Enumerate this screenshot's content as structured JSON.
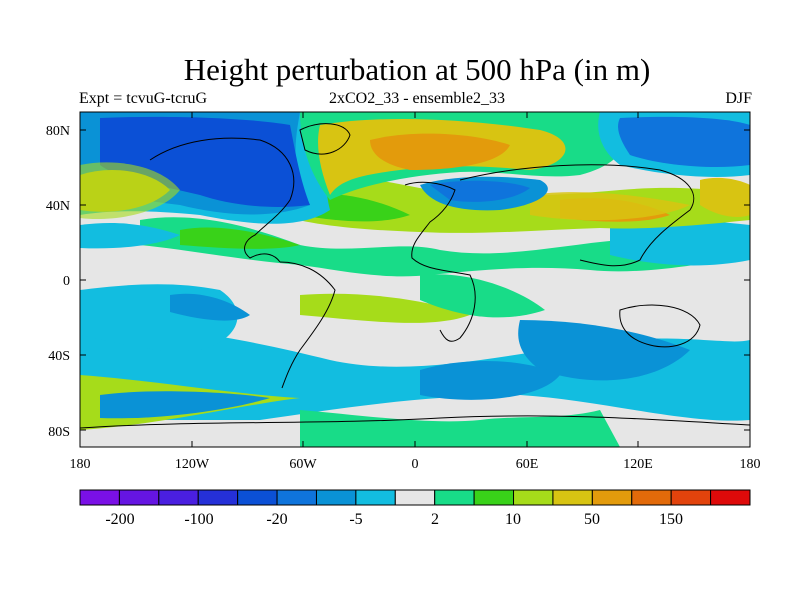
{
  "title": "Height perturbation at 500 hPa (in m)",
  "left_subtitle": "Expt = tcvuG-tcruG",
  "center_subtitle": "2xCO2_33 - ensemble2_33",
  "right_subtitle": "DJF",
  "axes": {
    "lat_ticks": [
      "80N",
      "40N",
      "0",
      "40S",
      "80S"
    ],
    "lon_ticks": [
      "180",
      "120W",
      "60W",
      "0",
      "60E",
      "120E",
      "180"
    ]
  },
  "colorbar": {
    "colors": [
      "#7a10e6",
      "#6515e2",
      "#4a1fe0",
      "#2530d8",
      "#0b50d6",
      "#0f74dc",
      "#0a92d6",
      "#12bde0",
      "#e6e6e6",
      "#18dc88",
      "#39d219",
      "#a6dc1a",
      "#d8c412",
      "#e39b0c",
      "#e26a0a",
      "#e2430c",
      "#de0a0a"
    ],
    "labels": [
      "-200",
      "-100",
      "-20",
      "-5",
      "2",
      "10",
      "50",
      "150"
    ]
  },
  "map_colors": {
    "background": "#e6e6e6",
    "deep_blue": "#0b50d6",
    "mid_blue": "#0f74dc",
    "light_blue": "#0a92d6",
    "cyan": "#12bde0",
    "green": "#18dc88",
    "yellow_green": "#a6dc1a",
    "lime": "#39d219",
    "yellow": "#d8c412",
    "orange": "#e39b0c",
    "coast": "#000000"
  }
}
